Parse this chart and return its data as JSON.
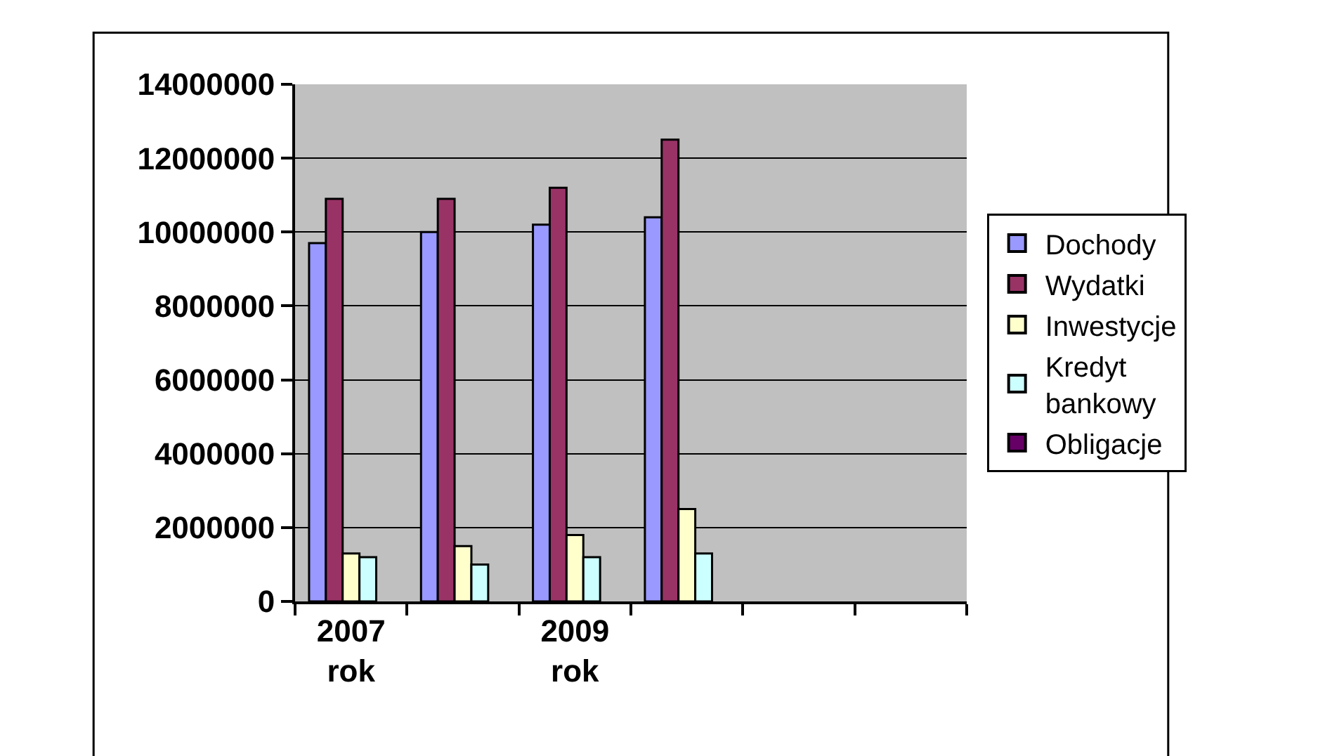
{
  "chart_data": {
    "type": "bar",
    "categories": [
      "2007 rok",
      null,
      "2009 rok",
      null,
      null,
      null
    ],
    "series": [
      {
        "name": "Dochody",
        "color": "#9999ff",
        "values": [
          9700000,
          10000000,
          10200000,
          10400000,
          null,
          null
        ]
      },
      {
        "name": "Wydatki",
        "color": "#993366",
        "values": [
          10900000,
          10900000,
          11200000,
          12500000,
          null,
          null
        ]
      },
      {
        "name": "Inwestycje",
        "color": "#ffffcc",
        "values": [
          1300000,
          1500000,
          1800000,
          2500000,
          null,
          null
        ]
      },
      {
        "name": "Kredyt bankowy",
        "color": "#ccffff",
        "values": [
          1200000,
          1000000,
          1200000,
          1300000,
          null,
          null
        ]
      },
      {
        "name": "Obligacje",
        "color": "#660066",
        "values": [
          null,
          null,
          null,
          null,
          null,
          null
        ]
      }
    ],
    "ylim": [
      0,
      14000000
    ],
    "yticks": [
      0,
      2000000,
      4000000,
      6000000,
      8000000,
      10000000,
      12000000,
      14000000
    ],
    "grid": "y",
    "legend": "right"
  }
}
